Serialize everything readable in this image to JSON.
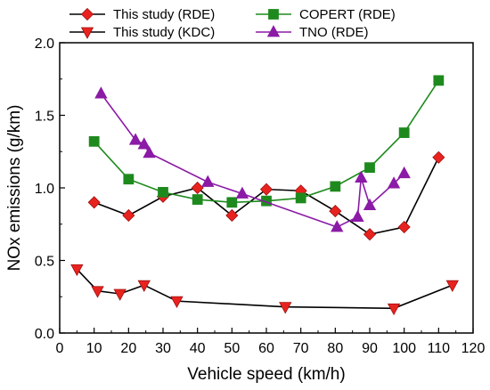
{
  "chart_data": {
    "type": "line",
    "xlabel": "Vehicle speed (km/h)",
    "ylabel": "NOx emissions (g/km)",
    "xlim": [
      0,
      120
    ],
    "ylim": [
      0.0,
      2.0
    ],
    "xticks": [
      "0",
      "10",
      "20",
      "30",
      "40",
      "50",
      "60",
      "70",
      "80",
      "90",
      "100",
      "110",
      "120"
    ],
    "yticks": [
      "0.0",
      "0.5",
      "1.0",
      "1.5",
      "2.0"
    ],
    "grid": false,
    "legend_position": "top",
    "series": [
      {
        "name": "This study (RDE)",
        "marker": "diamond",
        "color": "#e8231f",
        "line_color": "#000000",
        "points": [
          [
            10,
            0.9
          ],
          [
            20,
            0.81
          ],
          [
            30,
            0.94
          ],
          [
            40,
            1.0
          ],
          [
            50,
            0.81
          ],
          [
            60,
            0.99
          ],
          [
            70,
            0.98
          ],
          [
            80,
            0.84
          ],
          [
            90,
            0.68
          ],
          [
            100,
            0.73
          ],
          [
            110,
            1.21
          ]
        ]
      },
      {
        "name": "This study (KDC)",
        "marker": "triangle-down",
        "color": "#e8231f",
        "line_color": "#000000",
        "points": [
          [
            5,
            0.44
          ],
          [
            11,
            0.29
          ],
          [
            17.5,
            0.27
          ],
          [
            24.5,
            0.33
          ],
          [
            34,
            0.22
          ],
          [
            65.5,
            0.18
          ],
          [
            97,
            0.17
          ],
          [
            114,
            0.33
          ]
        ]
      },
      {
        "name": "COPERT (RDE)",
        "marker": "square",
        "color": "#1e8a1e",
        "line_color": "#1e8a1e",
        "points": [
          [
            10,
            1.32
          ],
          [
            20,
            1.06
          ],
          [
            30,
            0.97
          ],
          [
            40,
            0.92
          ],
          [
            50,
            0.9
          ],
          [
            60,
            0.91
          ],
          [
            70,
            0.93
          ],
          [
            80,
            1.01
          ],
          [
            90,
            1.14
          ],
          [
            100,
            1.38
          ],
          [
            110,
            1.74
          ]
        ]
      },
      {
        "name": "TNO (RDE)",
        "marker": "triangle-up",
        "color": "#8b1aa6",
        "line_color": "#8b1aa6",
        "points": [
          [
            12,
            1.65
          ],
          [
            22,
            1.33
          ],
          [
            24.5,
            1.3
          ],
          [
            26,
            1.24
          ],
          [
            43,
            1.04
          ],
          [
            53,
            0.96
          ],
          [
            80.5,
            0.73
          ],
          [
            86.5,
            0.8
          ],
          [
            87.5,
            1.07
          ],
          [
            90,
            0.88
          ],
          [
            97,
            1.03
          ],
          [
            100,
            1.1
          ]
        ]
      }
    ]
  }
}
